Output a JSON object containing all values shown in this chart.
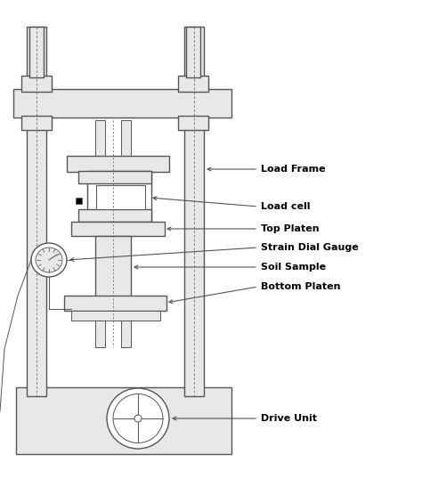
{
  "bg_color": "#ffffff",
  "line_color": "#555555",
  "fill_light": "#e8e8e8",
  "fill_white": "#ffffff",
  "labels": {
    "load_frame": "Load Frame",
    "load_cell": "Load cell",
    "top_platen": "Top Platen",
    "strain_gauge": "Strain Dial Gauge",
    "soil_sample": "Soil Sample",
    "bottom_platen": "Bottom Platen",
    "drive_unit": "Drive Unit"
  },
  "figsize": [
    4.74,
    5.47
  ],
  "dpi": 100
}
